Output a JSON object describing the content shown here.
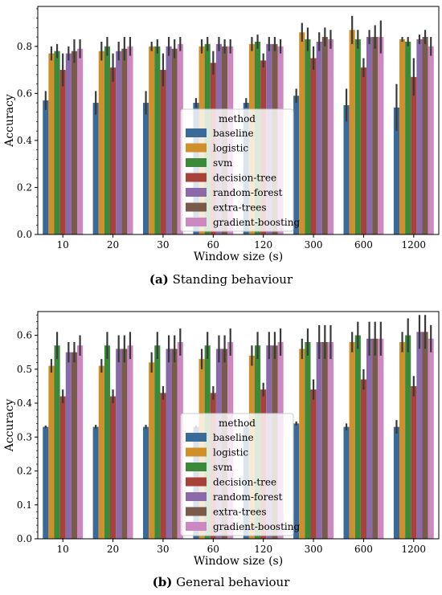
{
  "captions": [
    {
      "label": "(a)",
      "text": "Standing behaviour"
    },
    {
      "label": "(b)",
      "text": "General behaviour"
    }
  ],
  "legend_title": "method",
  "colors": {
    "baseline": "#3a6a9a",
    "logistic": "#cf8f2a",
    "svm": "#3a8a3a",
    "decision-tree": "#a8413a",
    "random-forest": "#8a6aa8",
    "extra-trees": "#7a5a4a",
    "gradient-boosting": "#cc88c0"
  },
  "chart_data": [
    {
      "type": "bar",
      "title": "",
      "xlabel": "Window size (s)",
      "ylabel": "Accuracy",
      "ylim": [
        0,
        0.97
      ],
      "yticks": [
        0.0,
        0.2,
        0.4,
        0.6,
        0.8
      ],
      "legend_placement": "center",
      "grid": false,
      "categories": [
        "10",
        "20",
        "30",
        "60",
        "120",
        "300",
        "600",
        "1200"
      ],
      "series": [
        {
          "name": "baseline",
          "values": [
            0.57,
            0.56,
            0.56,
            0.56,
            0.56,
            0.59,
            0.55,
            0.54
          ],
          "err": [
            0.04,
            0.05,
            0.05,
            0.02,
            0.02,
            0.03,
            0.07,
            0.1
          ]
        },
        {
          "name": "logistic",
          "values": [
            0.77,
            0.78,
            0.8,
            0.8,
            0.81,
            0.86,
            0.87,
            0.83
          ],
          "err": [
            0.03,
            0.04,
            0.02,
            0.03,
            0.03,
            0.04,
            0.06,
            0.01
          ]
        },
        {
          "name": "svm",
          "values": [
            0.78,
            0.8,
            0.8,
            0.81,
            0.82,
            0.83,
            0.83,
            0.82
          ],
          "err": [
            0.03,
            0.04,
            0.03,
            0.03,
            0.03,
            0.05,
            0.04,
            0.02
          ]
        },
        {
          "name": "decision-tree",
          "values": [
            0.7,
            0.71,
            0.7,
            0.73,
            0.74,
            0.75,
            0.71,
            0.67
          ],
          "err": [
            0.07,
            0.06,
            0.07,
            0.05,
            0.03,
            0.05,
            0.04,
            0.08
          ]
        },
        {
          "name": "random-forest",
          "values": [
            0.77,
            0.78,
            0.8,
            0.81,
            0.81,
            0.82,
            0.84,
            0.83
          ],
          "err": [
            0.03,
            0.04,
            0.04,
            0.03,
            0.03,
            0.04,
            0.03,
            0.02
          ]
        },
        {
          "name": "extra-trees",
          "values": [
            0.78,
            0.79,
            0.79,
            0.8,
            0.81,
            0.84,
            0.84,
            0.84
          ],
          "err": [
            0.05,
            0.05,
            0.04,
            0.03,
            0.03,
            0.04,
            0.05,
            0.03
          ]
        },
        {
          "name": "gradient-boosting",
          "values": [
            0.79,
            0.8,
            0.81,
            0.8,
            0.8,
            0.83,
            0.84,
            0.8
          ],
          "err": [
            0.04,
            0.04,
            0.03,
            0.03,
            0.03,
            0.04,
            0.07,
            0.04
          ]
        }
      ]
    },
    {
      "type": "bar",
      "title": "",
      "xlabel": "Window size (s)",
      "ylabel": "Accuracy",
      "ylim": [
        0,
        0.67
      ],
      "yticks": [
        0.0,
        0.1,
        0.2,
        0.3,
        0.4,
        0.5,
        0.6
      ],
      "legend_placement": "center",
      "grid": false,
      "categories": [
        "10",
        "20",
        "30",
        "60",
        "120",
        "300",
        "600",
        "1200"
      ],
      "series": [
        {
          "name": "baseline",
          "values": [
            0.33,
            0.33,
            0.33,
            0.33,
            0.33,
            0.34,
            0.33,
            0.33
          ],
          "err": [
            0.004,
            0.006,
            0.006,
            0.004,
            0.004,
            0.006,
            0.01,
            0.02
          ]
        },
        {
          "name": "logistic",
          "values": [
            0.51,
            0.51,
            0.52,
            0.53,
            0.54,
            0.56,
            0.58,
            0.58
          ],
          "err": [
            0.02,
            0.02,
            0.03,
            0.03,
            0.03,
            0.03,
            0.03,
            0.03
          ]
        },
        {
          "name": "svm",
          "values": [
            0.57,
            0.57,
            0.57,
            0.57,
            0.57,
            0.58,
            0.6,
            0.6
          ],
          "err": [
            0.04,
            0.04,
            0.04,
            0.04,
            0.04,
            0.04,
            0.04,
            0.05
          ]
        },
        {
          "name": "decision-tree",
          "values": [
            0.42,
            0.42,
            0.43,
            0.43,
            0.44,
            0.44,
            0.47,
            0.45
          ],
          "err": [
            0.02,
            0.02,
            0.02,
            0.02,
            0.02,
            0.03,
            0.03,
            0.03
          ]
        },
        {
          "name": "random-forest",
          "values": [
            0.55,
            0.56,
            0.56,
            0.56,
            0.57,
            0.58,
            0.59,
            0.61
          ],
          "err": [
            0.03,
            0.04,
            0.04,
            0.04,
            0.04,
            0.05,
            0.05,
            0.05
          ]
        },
        {
          "name": "extra-trees",
          "values": [
            0.55,
            0.56,
            0.56,
            0.56,
            0.57,
            0.58,
            0.59,
            0.61
          ],
          "err": [
            0.03,
            0.04,
            0.04,
            0.04,
            0.04,
            0.05,
            0.05,
            0.05
          ]
        },
        {
          "name": "gradient-boosting",
          "values": [
            0.57,
            0.57,
            0.58,
            0.58,
            0.58,
            0.58,
            0.59,
            0.59
          ],
          "err": [
            0.03,
            0.04,
            0.04,
            0.04,
            0.04,
            0.05,
            0.05,
            0.04
          ]
        }
      ]
    }
  ]
}
